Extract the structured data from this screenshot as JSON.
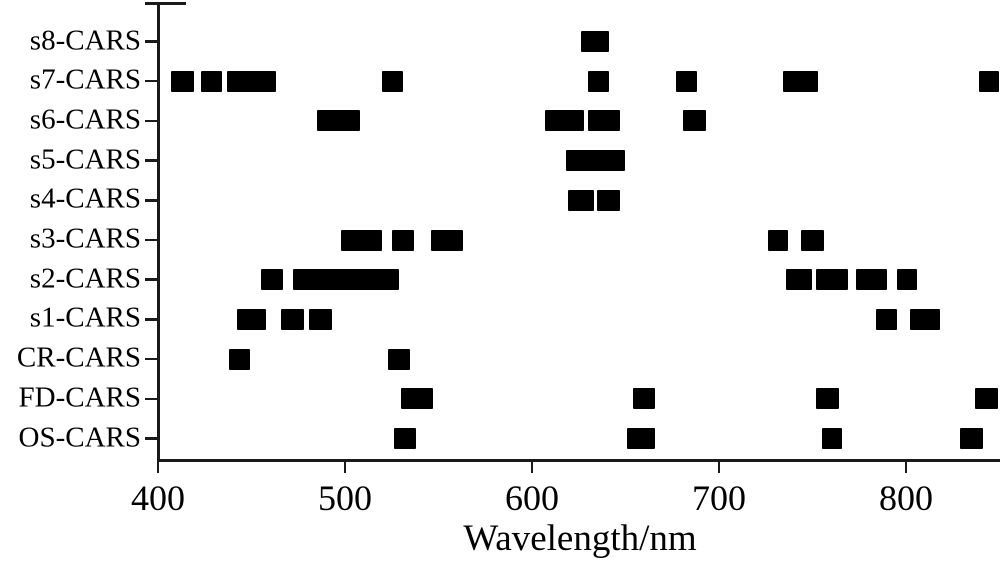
{
  "chart_data": {
    "type": "interval",
    "title": "",
    "xlabel": "Wavelength/nm",
    "ylabel": "",
    "xlim": [
      400,
      850
    ],
    "xticks": [
      400,
      500,
      600,
      700,
      800
    ],
    "grid": false,
    "legend": "none",
    "bar_color": "#000000",
    "categories": [
      "s8-CARS",
      "s7-CARS",
      "s6-CARS",
      "s5-CARS",
      "s4-CARS",
      "s3-CARS",
      "s2-CARS",
      "s1-CARS",
      "CR-CARS",
      "FD-CARS",
      "OS-CARS"
    ],
    "series": [
      {
        "name": "s8-CARS",
        "bands_nm": [
          [
            626,
            641
          ]
        ]
      },
      {
        "name": "s7-CARS",
        "bands_nm": [
          [
            407,
            419
          ],
          [
            423,
            434
          ],
          [
            437,
            463
          ],
          [
            520,
            531
          ],
          [
            630,
            641
          ],
          [
            677,
            688
          ],
          [
            734,
            753
          ],
          [
            839,
            850
          ]
        ]
      },
      {
        "name": "s6-CARS",
        "bands_nm": [
          [
            485,
            508
          ],
          [
            607,
            628
          ],
          [
            630,
            647
          ],
          [
            681,
            693
          ]
        ]
      },
      {
        "name": "s5-CARS",
        "bands_nm": [
          [
            618,
            650
          ]
        ]
      },
      {
        "name": "s4-CARS",
        "bands_nm": [
          [
            619,
            633
          ],
          [
            635,
            647
          ]
        ]
      },
      {
        "name": "s3-CARS",
        "bands_nm": [
          [
            498,
            520
          ],
          [
            525,
            537
          ],
          [
            546,
            563
          ],
          [
            726,
            737
          ],
          [
            744,
            756
          ]
        ]
      },
      {
        "name": "s2-CARS",
        "bands_nm": [
          [
            455,
            467
          ],
          [
            472,
            529
          ],
          [
            736,
            750
          ],
          [
            752,
            769
          ],
          [
            773,
            790
          ],
          [
            795,
            806
          ]
        ]
      },
      {
        "name": "s1-CARS",
        "bands_nm": [
          [
            442,
            458
          ],
          [
            466,
            478
          ],
          [
            481,
            493
          ],
          [
            784,
            795
          ],
          [
            802,
            818
          ]
        ]
      },
      {
        "name": "CR-CARS",
        "bands_nm": [
          [
            438,
            449
          ],
          [
            523,
            535
          ]
        ]
      },
      {
        "name": "FD-CARS",
        "bands_nm": [
          [
            530,
            547
          ],
          [
            654,
            666
          ],
          [
            752,
            764
          ],
          [
            837,
            849
          ]
        ]
      },
      {
        "name": "OS-CARS",
        "bands_nm": [
          [
            526,
            538
          ],
          [
            651,
            666
          ],
          [
            755,
            766
          ],
          [
            829,
            841
          ]
        ]
      }
    ]
  }
}
